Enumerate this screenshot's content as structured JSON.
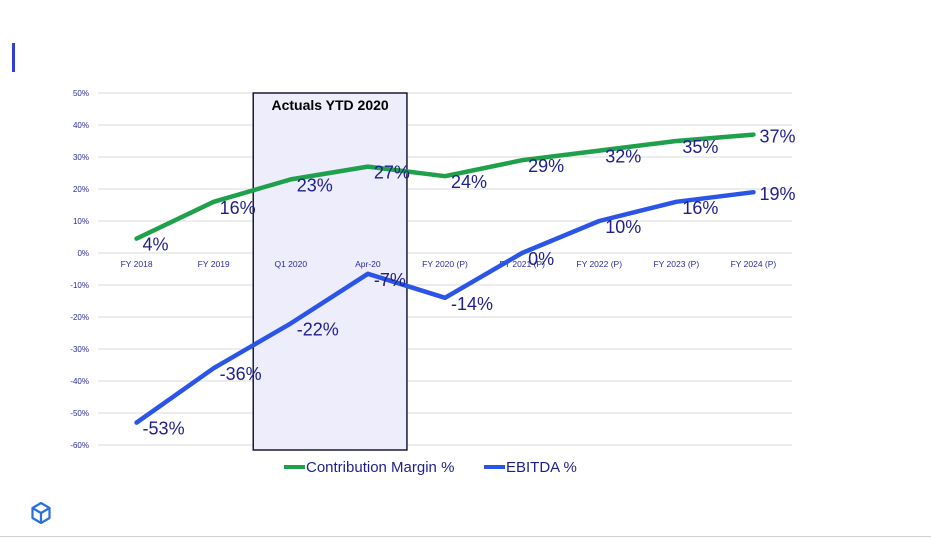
{
  "chart_data": {
    "type": "line",
    "categories": [
      "FY 2018",
      "FY 2019",
      "Q1 2020",
      "Apr-20",
      "FY 2020 (P)",
      "FY 2021 (P)",
      "FY 2022 (P)",
      "FY 2023 (P)",
      "FY 2024 (P)"
    ],
    "series": [
      {
        "name": "Contribution Margin %",
        "color": "#1fa04b",
        "values": [
          4.5,
          16,
          23,
          27,
          24,
          29,
          32,
          35,
          37
        ],
        "labels": [
          "4%",
          "16%",
          "23%",
          "27%",
          "24%",
          "29%",
          "32%",
          "35%",
          "37%"
        ]
      },
      {
        "name": "EBITDA %",
        "color": "#2b55e6",
        "values": [
          -53,
          -36,
          -22,
          -6.5,
          -14,
          0,
          10,
          16,
          19
        ],
        "labels": [
          "-53%",
          "-36%",
          "-22%",
          "-7%",
          "-14%",
          "0%",
          "10%",
          "16%",
          "19%"
        ]
      }
    ],
    "yticks": [
      "50%",
      "40%",
      "30%",
      "20%",
      "10%",
      "0%",
      "-10%",
      "-20%",
      "-30%",
      "-40%",
      "-50%",
      "-60%"
    ],
    "ylim": [
      -60,
      50
    ],
    "grid": true,
    "legend_position": "bottom",
    "annotation": {
      "text": "Actuals YTD 2020",
      "from_category": "Q1 2020",
      "to_category": "Apr-20",
      "fill": "#ededfb"
    }
  },
  "colors": {
    "accent": "#2f3fd6",
    "text": "#1e1e8c"
  },
  "logo": {
    "icon": "cube-logo-icon"
  }
}
